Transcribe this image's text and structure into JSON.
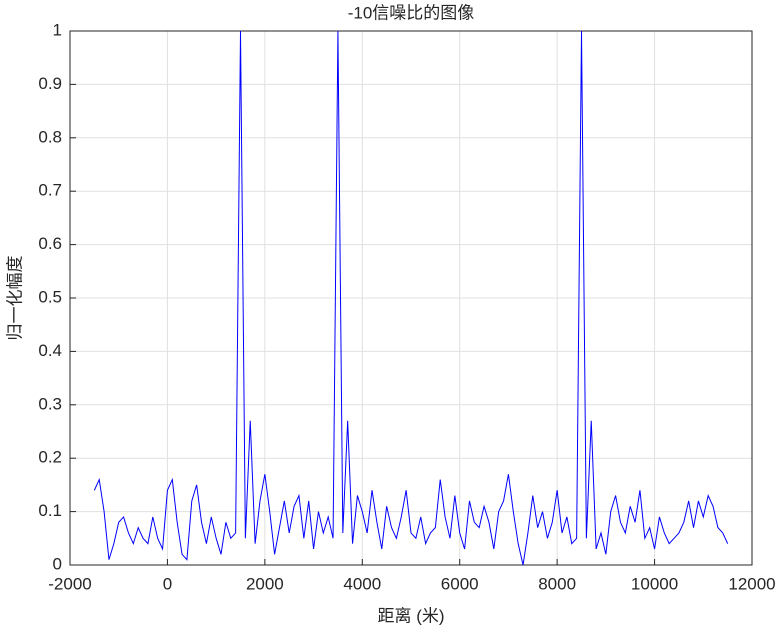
{
  "chart_data": {
    "type": "line",
    "title": "-10信噪比的图像",
    "x_label": "距离 (米)",
    "y_label": "归一化幅度",
    "x": [
      -1500,
      -1400,
      -1300,
      -1200,
      -1100,
      -1000,
      -900,
      -800,
      -700,
      -600,
      -500,
      -400,
      -300,
      -200,
      -100,
      0,
      100,
      200,
      300,
      400,
      500,
      600,
      700,
      800,
      900,
      1000,
      1100,
      1200,
      1300,
      1400,
      1500,
      1600,
      1700,
      1800,
      1900,
      2000,
      2100,
      2200,
      2300,
      2400,
      2500,
      2600,
      2700,
      2800,
      2900,
      3000,
      3100,
      3200,
      3300,
      3400,
      3500,
      3600,
      3700,
      3800,
      3900,
      4000,
      4100,
      4200,
      4300,
      4400,
      4500,
      4600,
      4700,
      4800,
      4900,
      5000,
      5100,
      5200,
      5300,
      5400,
      5500,
      5600,
      5700,
      5800,
      5900,
      6000,
      6100,
      6200,
      6300,
      6400,
      6500,
      6600,
      6700,
      6800,
      6900,
      7000,
      7100,
      7200,
      7300,
      7400,
      7500,
      7600,
      7700,
      7800,
      7900,
      8000,
      8100,
      8200,
      8300,
      8400,
      8500,
      8600,
      8700,
      8800,
      8900,
      9000,
      9100,
      9200,
      9300,
      9400,
      9500,
      9600,
      9700,
      9800,
      9900,
      10000,
      10100,
      10200,
      10300,
      10400,
      10500,
      10600,
      10700,
      10800,
      10900,
      11000,
      11100,
      11200,
      11300,
      11400,
      11500
    ],
    "series": [
      {
        "color": "#0000ff",
        "values": [
          0.14,
          0.16,
          0.1,
          0.01,
          0.04,
          0.08,
          0.09,
          0.06,
          0.04,
          0.07,
          0.05,
          0.04,
          0.09,
          0.05,
          0.03,
          0.14,
          0.16,
          0.08,
          0.02,
          0.01,
          0.12,
          0.15,
          0.08,
          0.04,
          0.09,
          0.05,
          0.02,
          0.08,
          0.05,
          0.06,
          1.0,
          0.05,
          0.27,
          0.04,
          0.12,
          0.17,
          0.1,
          0.02,
          0.07,
          0.12,
          0.06,
          0.11,
          0.13,
          0.05,
          0.12,
          0.03,
          0.1,
          0.06,
          0.09,
          0.05,
          1.0,
          0.06,
          0.27,
          0.04,
          0.13,
          0.1,
          0.06,
          0.14,
          0.08,
          0.03,
          0.11,
          0.07,
          0.05,
          0.09,
          0.14,
          0.06,
          0.05,
          0.09,
          0.04,
          0.06,
          0.07,
          0.16,
          0.09,
          0.05,
          0.13,
          0.06,
          0.03,
          0.12,
          0.08,
          0.07,
          0.11,
          0.08,
          0.03,
          0.1,
          0.12,
          0.17,
          0.1,
          0.04,
          0.0,
          0.06,
          0.13,
          0.07,
          0.1,
          0.05,
          0.08,
          0.14,
          0.06,
          0.09,
          0.04,
          0.05,
          1.0,
          0.05,
          0.27,
          0.03,
          0.06,
          0.02,
          0.1,
          0.13,
          0.08,
          0.06,
          0.11,
          0.08,
          0.14,
          0.05,
          0.07,
          0.03,
          0.09,
          0.06,
          0.04,
          0.05,
          0.06,
          0.08,
          0.12,
          0.07,
          0.12,
          0.09,
          0.13,
          0.11,
          0.07,
          0.06,
          0.04
        ]
      }
    ],
    "xlim": [
      -2000,
      12000
    ],
    "xticks": [
      -2000,
      0,
      2000,
      4000,
      6000,
      8000,
      10000,
      12000
    ],
    "ylim": [
      0,
      1
    ],
    "yticks": [
      0,
      0.1,
      0.2,
      0.3,
      0.4,
      0.5,
      0.6,
      0.7,
      0.8,
      0.9,
      1
    ],
    "grid": true
  }
}
